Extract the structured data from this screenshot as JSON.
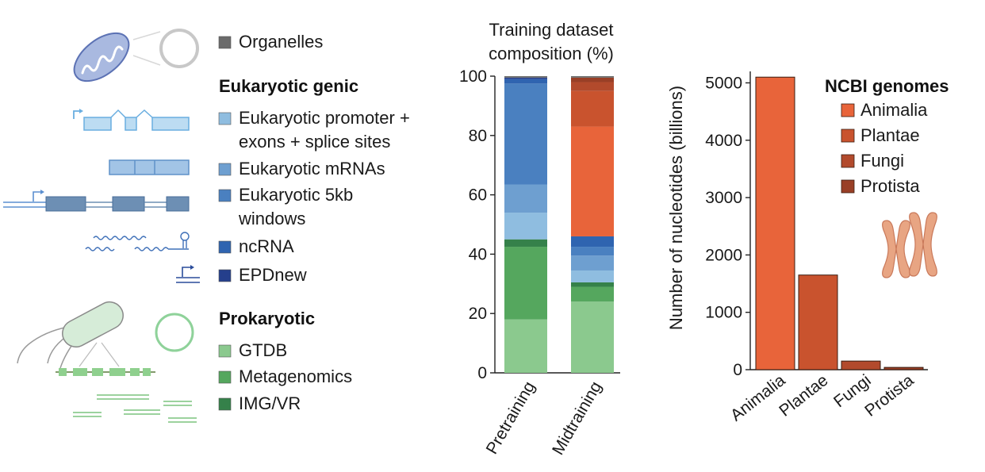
{
  "legend": {
    "organelles": "Organelles",
    "eukaryotic_heading": "Eukaryotic genic",
    "eukaryotic_items": [
      {
        "lines": [
          "Eukaryotic promoter +",
          "exons + splice sites"
        ],
        "color": "#8fbde0"
      },
      {
        "lines": [
          "Eukaryotic mRNAs"
        ],
        "color": "#6e9fd0"
      },
      {
        "lines": [
          "Eukaryotic 5kb",
          "windows"
        ],
        "color": "#4a80c0"
      },
      {
        "lines": [
          "ncRNA"
        ],
        "color": "#2f64b0"
      },
      {
        "lines": [
          "EPDnew"
        ],
        "color": "#253f8c"
      }
    ],
    "organelles_color": "#6b6b6b",
    "prokaryotic_heading": "Prokaryotic",
    "prokaryotic_items": [
      {
        "lines": [
          "GTDB"
        ],
        "color": "#8bc98e"
      },
      {
        "lines": [
          "Metagenomics"
        ],
        "color": "#55a75e"
      },
      {
        "lines": [
          "IMG/VR"
        ],
        "color": "#35814a"
      }
    ]
  },
  "chart_data": [
    {
      "type": "bar",
      "stacked": true,
      "title": "Training dataset composition (%)",
      "title_lines": [
        "Training dataset",
        "composition (%)"
      ],
      "categories": [
        "Pretraining",
        "Midtraining"
      ],
      "ylim": [
        0,
        100
      ],
      "yticks": [
        0,
        20,
        40,
        60,
        80,
        100
      ],
      "series": [
        {
          "name": "GTDB",
          "color": "#8bc98e",
          "values": [
            18,
            24
          ]
        },
        {
          "name": "Metagenomics",
          "color": "#55a75e",
          "values": [
            24.5,
            5
          ]
        },
        {
          "name": "IMG/VR",
          "color": "#35814a",
          "values": [
            2.5,
            1.5
          ]
        },
        {
          "name": "Eukaryotic promoter + exons + splice sites",
          "color": "#8fbde0",
          "values": [
            9,
            4
          ]
        },
        {
          "name": "Eukaryotic mRNAs",
          "color": "#6e9fd0",
          "values": [
            9.5,
            5
          ]
        },
        {
          "name": "Eukaryotic 5kb windows",
          "color": "#4a80c0",
          "values": [
            34,
            3
          ]
        },
        {
          "name": "ncRNA",
          "color": "#2f64b0",
          "values": [
            1.5,
            3.5
          ]
        },
        {
          "name": "EPDnew",
          "color": "#253f8c",
          "values": [
            0.5,
            0
          ]
        },
        {
          "name": "Animalia",
          "color": "#e8643a",
          "values": [
            0,
            37
          ]
        },
        {
          "name": "Plantae",
          "color": "#c9532e",
          "values": [
            0,
            12
          ]
        },
        {
          "name": "Fungi",
          "color": "#b24a2c",
          "values": [
            0,
            3
          ]
        },
        {
          "name": "Protista",
          "color": "#993f26",
          "values": [
            0,
            1.5
          ]
        },
        {
          "name": "Organelles",
          "color": "#6b6b6b",
          "values": [
            0.5,
            0.5
          ]
        }
      ]
    },
    {
      "type": "bar",
      "title": "NCBI genomes",
      "ylabel": "Number of nucleotides (billions)",
      "categories": [
        "Animalia",
        "Plantae",
        "Fungi",
        "Protista"
      ],
      "values": [
        5100,
        1650,
        150,
        40
      ],
      "colors": [
        "#e8643a",
        "#c9532e",
        "#b24a2c",
        "#993f26"
      ],
      "ylim": [
        0,
        5200
      ],
      "yticks": [
        0,
        1000,
        2000,
        3000,
        4000,
        5000
      ]
    }
  ]
}
